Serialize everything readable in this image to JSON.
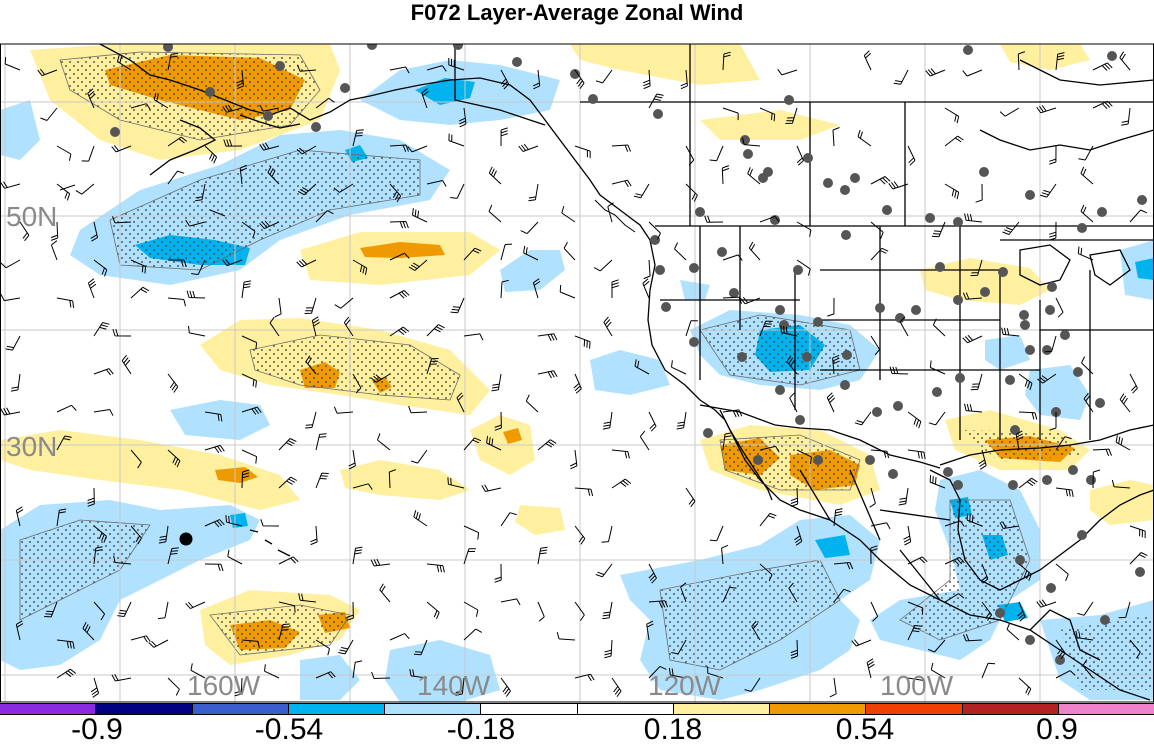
{
  "title": "F072 Layer-Average Zonal Wind",
  "lat_labels": [
    "50N",
    "30N"
  ],
  "lon_labels": [
    "160W",
    "140W",
    "120W",
    "100W"
  ],
  "colorbar": {
    "colors": [
      "#8a2be2",
      "#000080",
      "#3a5fcd",
      "#00b2ee",
      "#b0e2ff",
      "#ffffff",
      "#ffffff",
      "#fff0a0",
      "#ee9a00",
      "#ee4000",
      "#b22222",
      "#ee82c8"
    ],
    "labels": [
      "-0.9",
      "-0.54",
      "-0.18",
      "0.18",
      "0.54",
      "0.9"
    ]
  },
  "palette": {
    "light_blue": "#b0e2ff",
    "blue": "#00b2ee",
    "light_yellow": "#fff0a0",
    "orange": "#ee9a00",
    "station": "#555555",
    "grid": "#c8c8c8",
    "label": "#8a8a8a"
  }
}
